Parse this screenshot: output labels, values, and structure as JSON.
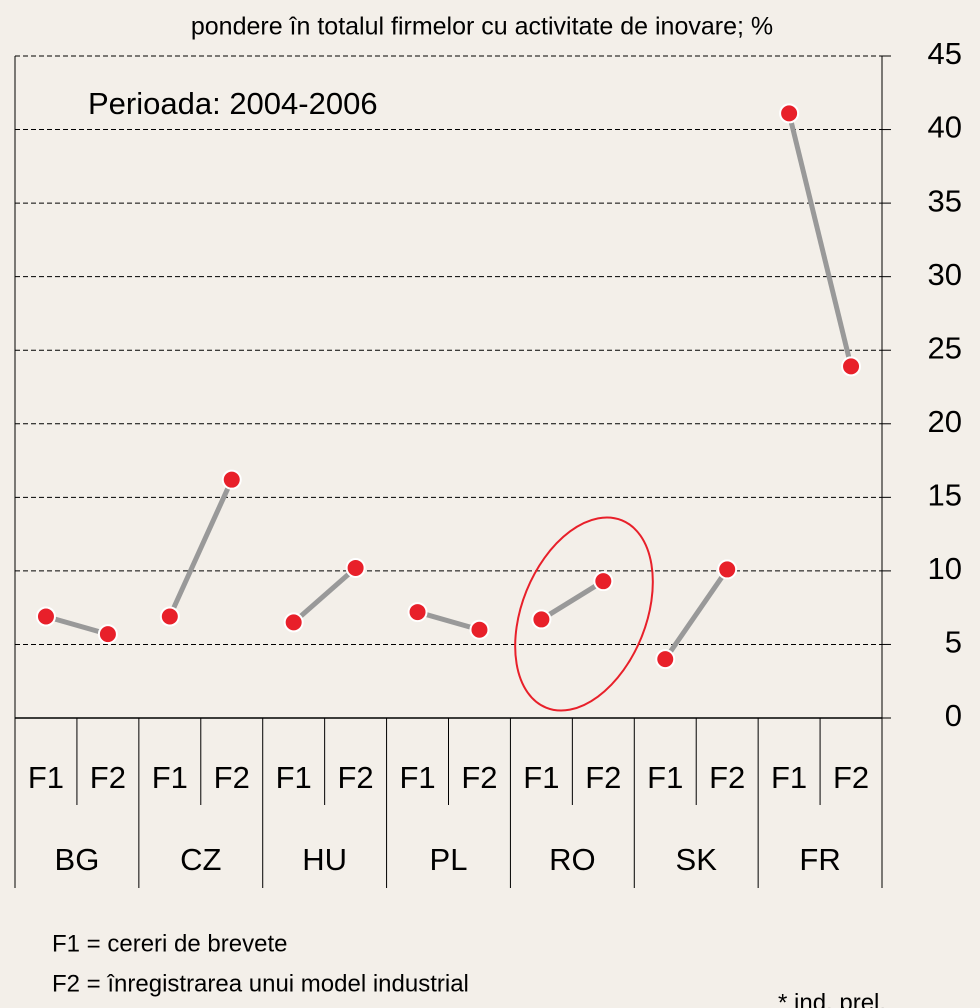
{
  "chart_data": {
    "type": "dumbbell",
    "title": "pondere în totalul firmelor cu activitate de inovare; %",
    "annotation": "Perioada: 2004-2006",
    "groups": [
      {
        "name": "BG",
        "labels": [
          "F1",
          "F2"
        ],
        "values": [
          6.9,
          5.7
        ]
      },
      {
        "name": "CZ",
        "labels": [
          "F1",
          "F2"
        ],
        "values": [
          6.9,
          16.2
        ]
      },
      {
        "name": "HU",
        "labels": [
          "F1",
          "F2"
        ],
        "values": [
          6.5,
          10.2
        ]
      },
      {
        "name": "PL",
        "labels": [
          "F1",
          "F2"
        ],
        "values": [
          7.2,
          6.0
        ]
      },
      {
        "name": "RO",
        "labels": [
          "F1",
          "F2"
        ],
        "values": [
          6.7,
          9.3
        ]
      },
      {
        "name": "SK",
        "labels": [
          "F1",
          "F2"
        ],
        "values": [
          4.0,
          10.1
        ]
      },
      {
        "name": "FR",
        "labels": [
          "F1",
          "F2"
        ],
        "values": [
          41.1,
          23.9
        ]
      }
    ],
    "point_color": "#e8202a",
    "line_color": "#999999",
    "ylim": [
      0,
      45
    ],
    "yticks": [
      0,
      5,
      10,
      15,
      20,
      25,
      30,
      35,
      40,
      45
    ],
    "grid": true,
    "footnotes": [
      "F1 = cereri de brevete",
      "F2 = înregistrarea unui model industrial"
    ],
    "note": "* ind. prel."
  }
}
